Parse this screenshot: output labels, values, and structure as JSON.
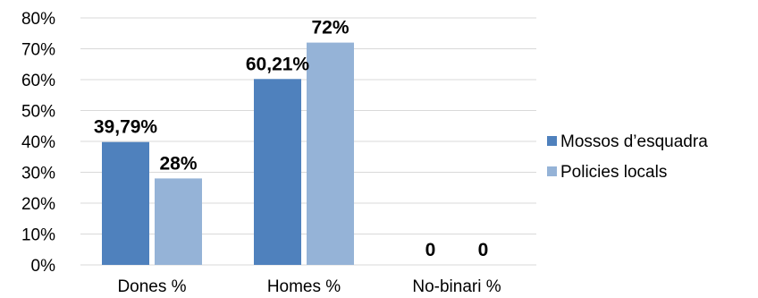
{
  "chart_data": {
    "type": "bar",
    "categories": [
      "Dones %",
      "Homes %",
      "No-binari %"
    ],
    "series": [
      {
        "name": "Mossos d’esquadra",
        "values": [
          39.79,
          60.21,
          0
        ],
        "labels": [
          "39,79%",
          "60,21%",
          "0"
        ],
        "color": "#4f81bd"
      },
      {
        "name": "Policies locals",
        "values": [
          28,
          72,
          0
        ],
        "labels": [
          "28%",
          "72%",
          "0"
        ],
        "color": "#95b3d7"
      }
    ],
    "ylim": [
      0,
      80
    ],
    "yticks": [
      0,
      10,
      20,
      30,
      40,
      50,
      60,
      70,
      80
    ],
    "ytick_labels": [
      "0%",
      "10%",
      "20%",
      "30%",
      "40%",
      "50%",
      "60%",
      "70%",
      "80%"
    ],
    "grid": true,
    "gridline_color": "#d9d9d9",
    "legend_position": "right",
    "title": "",
    "xlabel": "",
    "ylabel": ""
  }
}
